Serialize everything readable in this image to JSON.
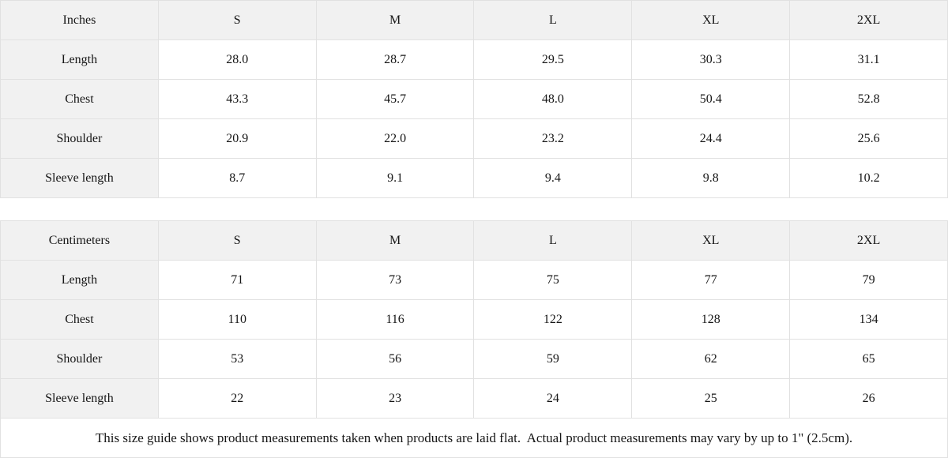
{
  "colors": {
    "header_cell_bg": "#f1f1f1",
    "data_cell_bg": "#ffffff",
    "border": "#e1e1e1",
    "text": "#161616"
  },
  "size_guide": {
    "tables": [
      {
        "unit_label": "Inches",
        "sizes": [
          "S",
          "M",
          "L",
          "XL",
          "2XL"
        ],
        "rows": [
          {
            "label": "Length",
            "values": [
              "28.0",
              "28.7",
              "29.5",
              "30.3",
              "31.1"
            ]
          },
          {
            "label": "Chest",
            "values": [
              "43.3",
              "45.7",
              "48.0",
              "50.4",
              "52.8"
            ]
          },
          {
            "label": "Shoulder",
            "values": [
              "20.9",
              "22.0",
              "23.2",
              "24.4",
              "25.6"
            ]
          },
          {
            "label": "Sleeve length",
            "values": [
              "8.7",
              "9.1",
              "9.4",
              "9.8",
              "10.2"
            ]
          }
        ]
      },
      {
        "unit_label": "Centimeters",
        "sizes": [
          "S",
          "M",
          "L",
          "XL",
          "2XL"
        ],
        "rows": [
          {
            "label": "Length",
            "values": [
              "71",
              "73",
              "75",
              "77",
              "79"
            ]
          },
          {
            "label": "Chest",
            "values": [
              "110",
              "116",
              "122",
              "128",
              "134"
            ]
          },
          {
            "label": "Shoulder",
            "values": [
              "53",
              "56",
              "59",
              "62",
              "65"
            ]
          },
          {
            "label": "Sleeve length",
            "values": [
              "22",
              "23",
              "24",
              "25",
              "26"
            ]
          }
        ]
      }
    ],
    "footer_note": "This size guide shows product measurements taken when products are laid flat.  Actual product measurements may vary by up to 1\" (2.5cm)."
  }
}
